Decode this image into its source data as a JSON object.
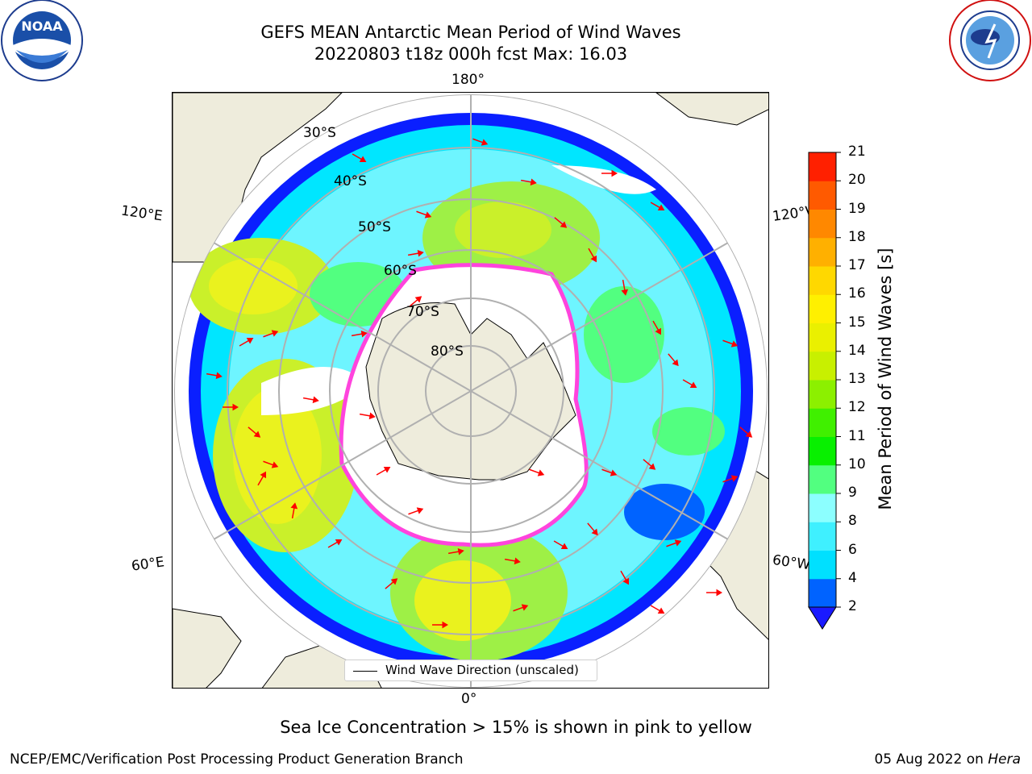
{
  "header": {
    "title_line1": "GEFS MEAN Antarctic Mean Period of Wind Waves",
    "title_line2": "20220803 t18z 000h fcst   Max: 16.03"
  },
  "logos": {
    "left": "noaa-logo",
    "right": "national-weather-service-logo"
  },
  "map": {
    "projection": "south-polar-stereographic",
    "lon_labels": {
      "top": "180°",
      "bottom": "0°",
      "upper_left": "120°E",
      "upper_right": "120°W",
      "lower_left": "60°E",
      "lower_right": "60°W"
    },
    "lat_labels": [
      "30°S",
      "40°S",
      "50°S",
      "60°S",
      "70°S",
      "80°S"
    ],
    "legend_label": "Wind Wave Direction (unscaled)",
    "colors": {
      "land": "#eeecdc",
      "ice_edge": "#ff44dd",
      "arrow": "#ff0000",
      "grid": "#b0b0b0"
    }
  },
  "colorbar": {
    "title": "Mean Period of Wind Waves [s]",
    "ticks": [
      "2",
      "4",
      "6",
      "8",
      "9",
      "10",
      "11",
      "12",
      "13",
      "14",
      "15",
      "16",
      "17",
      "18",
      "19",
      "20",
      "21"
    ],
    "colors": [
      "#0063ff",
      "#00e0ff",
      "#3ff0ff",
      "#8cffff",
      "#52ff80",
      "#08f000",
      "#40f000",
      "#8cf000",
      "#c8f000",
      "#eaf000",
      "#fff000",
      "#ffd800",
      "#ffb000",
      "#ff8800",
      "#ff5a00",
      "#ff2000"
    ],
    "under_color": "#1a1aff"
  },
  "caption": "Sea Ice Concentration > 15% is shown in pink to yellow",
  "footer": {
    "left": "NCEP/EMC/Verification Post Processing Product Generation Branch",
    "right_date": "05 Aug 2022 on ",
    "right_machine": "Hera"
  }
}
